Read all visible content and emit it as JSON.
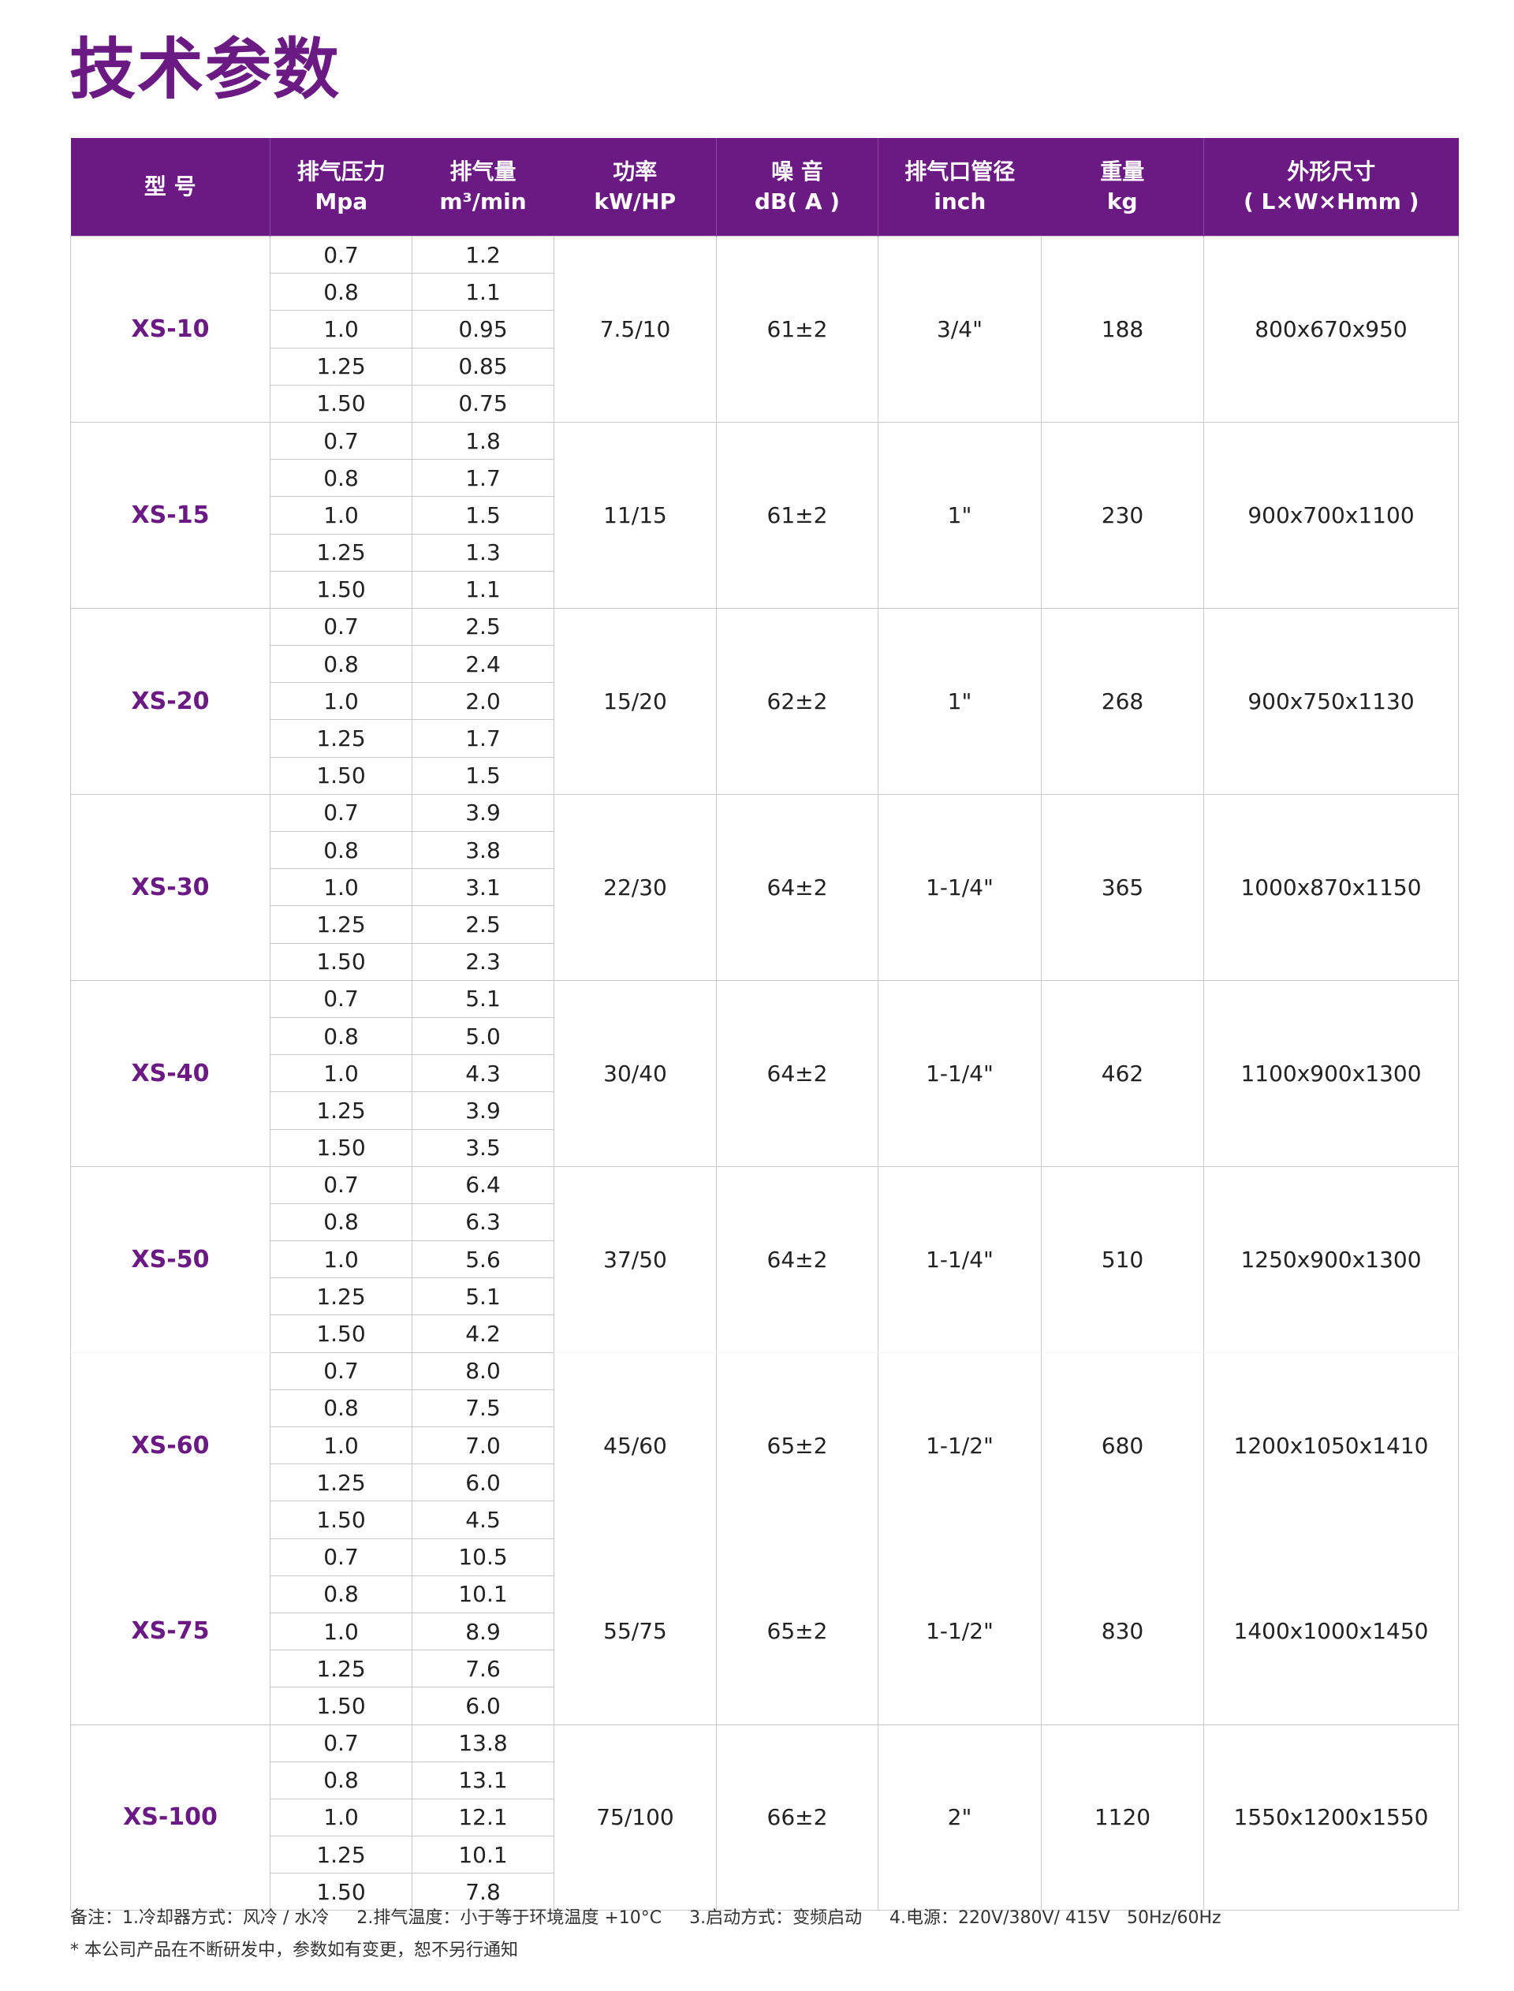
{
  "title": "技术参数",
  "colors": {
    "accent": "#6b1a84",
    "header_text": "#ffffff"
  },
  "table": {
    "headers": {
      "model": "型  号",
      "pressure": {
        "label": "排气压力",
        "unit": "Mpa"
      },
      "flow": {
        "label": "排气量",
        "unit": "m³/min"
      },
      "power": {
        "label": "功率",
        "unit": "kW/HP"
      },
      "noise": {
        "label": "噪 音",
        "unit": "dB( A )"
      },
      "outlet": {
        "label": "排气口管径",
        "unit": "inch"
      },
      "weight": {
        "label": "重量",
        "unit": "kg"
      },
      "dimensions": {
        "label": "外形尺寸",
        "unit": "( L×W×Hmm )"
      }
    },
    "models": [
      {
        "model": "XS-10",
        "pressures": [
          "0.7",
          "0.8",
          "1.0",
          "1.25",
          "1.50"
        ],
        "flows": [
          "1.2",
          "1.1",
          "0.95",
          "0.85",
          "0.75"
        ],
        "power": "7.5/10",
        "noise": "61±2",
        "outlet": "3/4\"",
        "weight": "188",
        "dimensions": "800x670x950"
      },
      {
        "model": "XS-15",
        "pressures": [
          "0.7",
          "0.8",
          "1.0",
          "1.25",
          "1.50"
        ],
        "flows": [
          "1.8",
          "1.7",
          "1.5",
          "1.3",
          "1.1"
        ],
        "power": "11/15",
        "noise": "61±2",
        "outlet": "1\"",
        "weight": "230",
        "dimensions": "900x700x1100"
      },
      {
        "model": "XS-20",
        "pressures": [
          "0.7",
          "0.8",
          "1.0",
          "1.25",
          "1.50"
        ],
        "flows": [
          "2.5",
          "2.4",
          "2.0",
          "1.7",
          "1.5"
        ],
        "power": "15/20",
        "noise": "62±2",
        "outlet": "1\"",
        "weight": "268",
        "dimensions": "900x750x1130"
      },
      {
        "model": "XS-30",
        "pressures": [
          "0.7",
          "0.8",
          "1.0",
          "1.25",
          "1.50"
        ],
        "flows": [
          "3.9",
          "3.8",
          "3.1",
          "2.5",
          "2.3"
        ],
        "power": "22/30",
        "noise": "64±2",
        "outlet": "1-1/4\"",
        "weight": "365",
        "dimensions": "1000x870x1150"
      },
      {
        "model": "XS-40",
        "pressures": [
          "0.7",
          "0.8",
          "1.0",
          "1.25",
          "1.50"
        ],
        "flows": [
          "5.1",
          "5.0",
          "4.3",
          "3.9",
          "3.5"
        ],
        "power": "30/40",
        "noise": "64±2",
        "outlet": "1-1/4\"",
        "weight": "462",
        "dimensions": "1100x900x1300"
      },
      {
        "model": "XS-50",
        "pressures": [
          "0.7",
          "0.8",
          "1.0",
          "1.25",
          "1.50"
        ],
        "flows": [
          "6.4",
          "6.3",
          "5.6",
          "5.1",
          "4.2"
        ],
        "power": "37/50",
        "noise": "64±2",
        "outlet": "1-1/4\"",
        "weight": "510",
        "dimensions": "1250x900x1300"
      },
      {
        "model": "XS-60",
        "pressures": [
          "0.7",
          "0.8",
          "1.0",
          "1.25",
          "1.50"
        ],
        "flows": [
          "8.0",
          "7.5",
          "7.0",
          "6.0",
          "4.5"
        ],
        "power": "45/60",
        "noise": "65±2",
        "outlet": "1-1/2\"",
        "weight": "680",
        "dimensions": "1200x1050x1410"
      },
      {
        "model": "XS-75",
        "pressures": [
          "0.7",
          "0.8",
          "1.0",
          "1.25",
          "1.50"
        ],
        "flows": [
          "10.5",
          "10.1",
          "8.9",
          "7.6",
          "6.0"
        ],
        "power": "55/75",
        "noise": "65±2",
        "outlet": "1-1/2\"",
        "weight": "830",
        "dimensions": "1400x1000x1450"
      },
      {
        "model": "XS-100",
        "pressures": [
          "0.7",
          "0.8",
          "1.0",
          "1.25",
          "1.50"
        ],
        "flows": [
          "13.8",
          "13.1",
          "12.1",
          "10.1",
          "7.8"
        ],
        "power": "75/100",
        "noise": "66±2",
        "outlet": "2\"",
        "weight": "1120",
        "dimensions": "1550x1200x1550"
      }
    ]
  },
  "notes": {
    "line1": "备注：1.冷却器方式：风冷 / 水冷     2.排气温度：小于等于环境温度 +10°C     3.启动方式：变频启动     4.电源：220V/380V/ 415V   50Hz/60Hz",
    "line2": "* 本公司产品在不断研发中，参数如有变更，恕不另行通知"
  }
}
